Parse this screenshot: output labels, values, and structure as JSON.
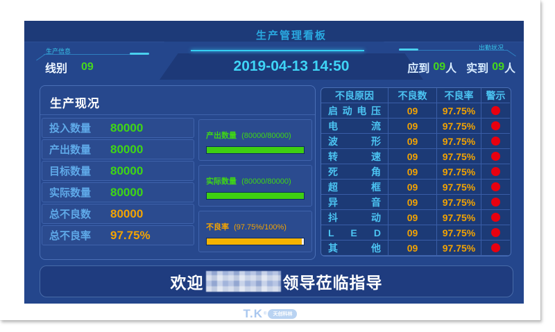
{
  "colors": {
    "dashboard_bg": "#24468c",
    "header_strip_bg": "#1d3a78",
    "panel_border": "#4a6fb5",
    "cell_border": "#3a5ea8",
    "table_bg": "#1c3a76",
    "accent_cyan": "#35d0f2",
    "title_cyan": "#2aa9e0",
    "label_blue": "#5fa9e8",
    "value_green": "#3fd615",
    "value_orange": "#f2a302",
    "bar_green": "#3ecf12",
    "bar_orange": "#f5b301",
    "alert_red": "#e8000f"
  },
  "header": {
    "title": "生产管理看板",
    "datetime": "2019-04-13 14:50",
    "production_info_label": "生产信息",
    "line_label": "线别",
    "line_value": "09",
    "attendance_label": "出勤状况",
    "expected_label": "应到",
    "expected_value": "09",
    "expected_unit": "人",
    "actual_label": "实到",
    "actual_value": "09",
    "actual_unit": "人"
  },
  "production_panel": {
    "title": "生产现况",
    "rows": [
      {
        "label": "投入数量",
        "value": "80000"
      },
      {
        "label": "产出数量",
        "value": "80000"
      },
      {
        "label": "目标数量",
        "value": "80000"
      },
      {
        "label": "实际数量",
        "value": "80000"
      },
      {
        "label": "总不良数",
        "value": "80000"
      },
      {
        "label": "总不良率",
        "value": "97.75%"
      }
    ],
    "bars": [
      {
        "label": "产出数量",
        "detail": "(80000/80000)",
        "percent": 100
      },
      {
        "label": "实际数量",
        "detail": "(80000/80000)",
        "percent": 100
      },
      {
        "label": "不良率",
        "detail": "(97.75%/100%)",
        "percent": 97.75
      }
    ]
  },
  "defect_table": {
    "headers": [
      "不良原因",
      "不良数",
      "不良率",
      "警示"
    ],
    "rows": [
      {
        "reason": "启动电压",
        "count": "09",
        "rate": "97.75%"
      },
      {
        "reason": "电 流",
        "count": "09",
        "rate": "97.75%"
      },
      {
        "reason": "波 形",
        "count": "09",
        "rate": "97.75%"
      },
      {
        "reason": "转 速",
        "count": "09",
        "rate": "97.75%"
      },
      {
        "reason": "死 角",
        "count": "09",
        "rate": "97.75%"
      },
      {
        "reason": "超 框",
        "count": "09",
        "rate": "97.75%"
      },
      {
        "reason": "异 音",
        "count": "09",
        "rate": "97.75%"
      },
      {
        "reason": "抖 动",
        "count": "09",
        "rate": "97.75%"
      },
      {
        "reason": "L E D",
        "count": "09",
        "rate": "97.75%"
      },
      {
        "reason": "其 他",
        "count": "09",
        "rate": "97.75%"
      }
    ]
  },
  "welcome": {
    "prefix": "欢迎",
    "suffix": "领导莅临指导"
  },
  "footer": {
    "logo_text": "T.K",
    "logo_reg": "®",
    "logo_sub": "天创科林"
  }
}
